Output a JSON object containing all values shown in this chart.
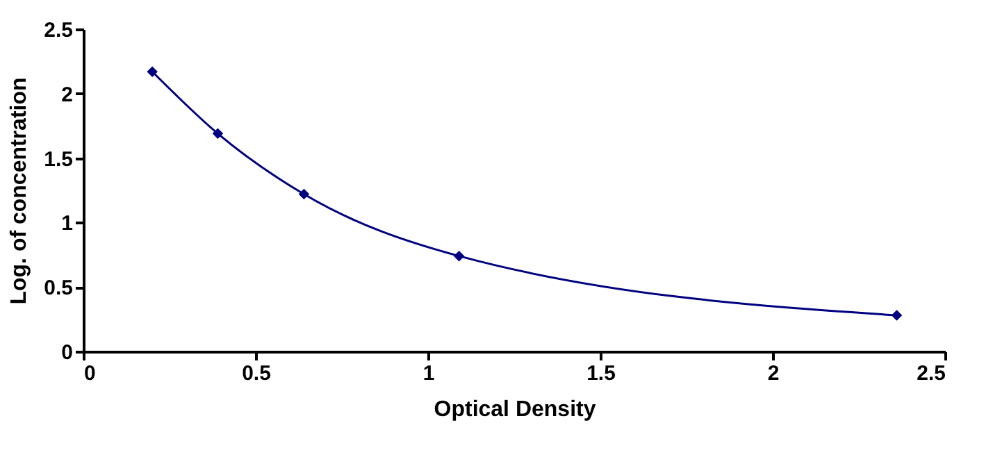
{
  "chart_data": {
    "type": "line",
    "xlabel": "Optical Density",
    "ylabel": "Log. of concentration",
    "series": [
      {
        "color": "#000080",
        "x": [
          0.2,
          0.39,
          0.64,
          1.09,
          2.36
        ],
        "values": [
          2.17,
          1.69,
          1.22,
          0.74,
          0.28
        ]
      }
    ],
    "xlim": [
      0,
      2.5
    ],
    "xticks": [
      0,
      0.5,
      1,
      1.5,
      2,
      2.5
    ],
    "ylim": [
      0,
      2.5
    ],
    "yticks": [
      0,
      0.5,
      1,
      1.5,
      2,
      2.5
    ],
    "grid": false,
    "marker": "diamond",
    "line_style": "solid"
  }
}
